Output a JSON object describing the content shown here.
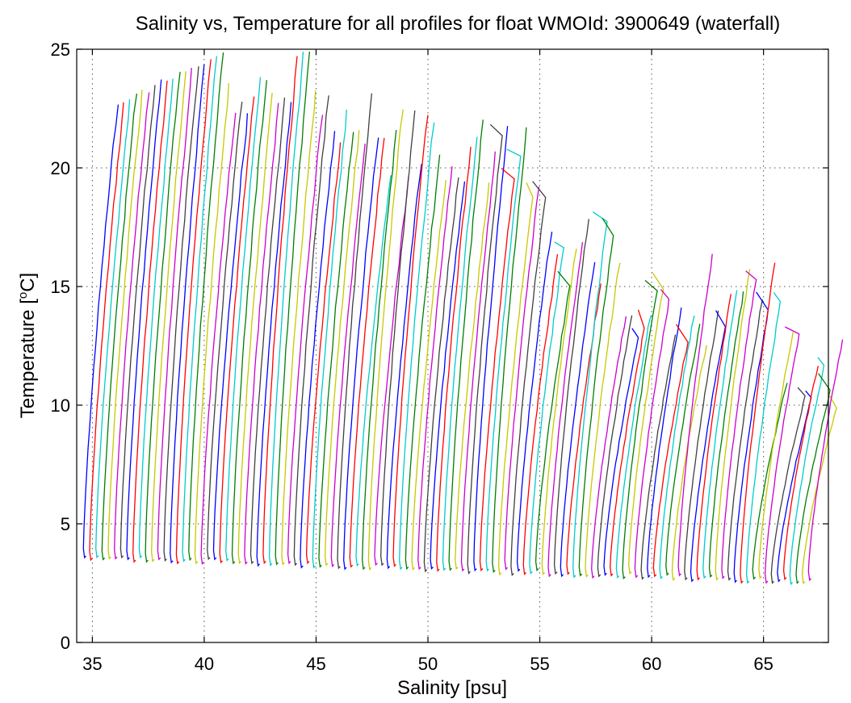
{
  "chart_data": {
    "type": "line",
    "title": "Salinity vs, Temperature for all profiles for float WMOId: 3900649 (waterfall)",
    "xlabel": "Salinity [psu]",
    "ylabel_main": "Temperature [",
    "ylabel_sup": "o",
    "ylabel_tail": "C]",
    "xlim": [
      34.3,
      67.9
    ],
    "ylim": [
      0,
      25
    ],
    "xticks": [
      35,
      40,
      45,
      50,
      55,
      60,
      65
    ],
    "yticks": [
      0,
      5,
      10,
      15,
      20,
      25
    ],
    "grid": true,
    "grid_style": "dotted",
    "profile_count": 118,
    "profile_offset_step": 0.277,
    "first_profile_bottom_salinity": 34.6,
    "series_colors": [
      "#0000ff",
      "#ff0000",
      "#00cccc",
      "#007f00",
      "#c8c800",
      "#cc00cc",
      "#404040"
    ]
  }
}
